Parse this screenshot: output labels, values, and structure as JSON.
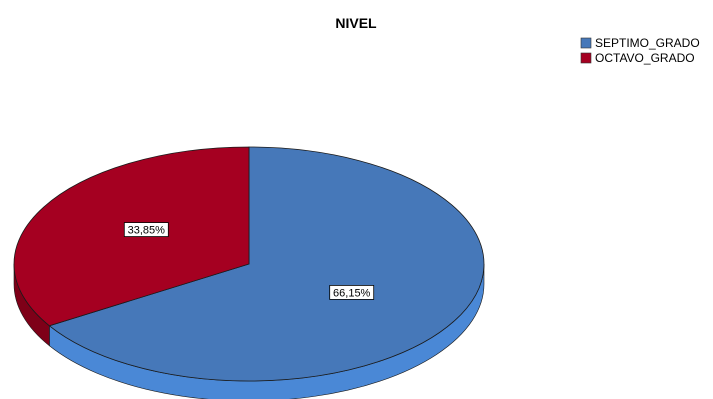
{
  "chart_data": {
    "type": "pie",
    "title": "NIVEL",
    "style": "3d",
    "legend_position": "top-right",
    "slices": [
      {
        "label": "SEPTIMO_GRADO",
        "value": 66.15,
        "data_label": "66,15%",
        "color": "#4678B9",
        "side_color": "#4A88D6"
      },
      {
        "label": "OCTAVO_GRADO",
        "value": 33.85,
        "data_label": "33,85%",
        "color": "#A50021",
        "side_color": "#7E0018"
      }
    ]
  }
}
